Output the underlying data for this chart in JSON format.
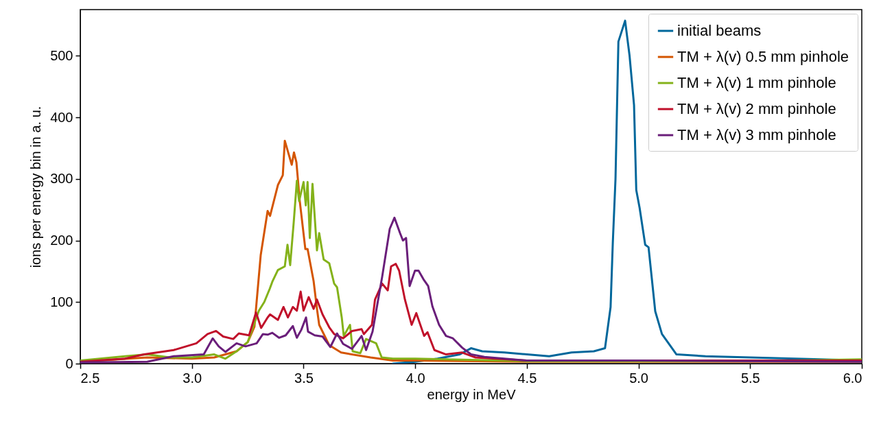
{
  "chart_data": {
    "type": "line",
    "xlabel": "energy in MeV",
    "ylabel": "ions per energy bin in a. u.",
    "xlim": [
      2.5,
      6.0
    ],
    "ylim": [
      0,
      575
    ],
    "xticks": [
      2.5,
      {
        "value": 3,
        "label": "3.0"
      },
      3.5,
      {
        "value": 4,
        "label": "4.0"
      },
      4.5,
      {
        "value": 5,
        "label": "5.0"
      },
      5.5,
      {
        "value": 6,
        "label": "6.0"
      }
    ],
    "yticks": [
      0,
      100,
      200,
      300,
      400,
      500
    ],
    "legend": "top right",
    "line_style": "solid",
    "marker": "none",
    "series": [
      {
        "name": "initial beams",
        "color": "#00679b",
        "x": [
          3.9,
          4.0,
          4.1,
          4.2,
          4.25,
          4.3,
          4.4,
          4.5,
          4.6,
          4.7,
          4.8,
          4.85,
          4.875,
          4.885,
          4.897,
          4.91,
          4.94,
          4.96,
          4.98,
          4.99,
          5.005,
          5.03,
          5.045,
          5.075,
          5.105,
          5.17,
          5.3,
          5.5,
          5.7,
          5.9,
          6.0
        ],
        "values": [
          0,
          3,
          8,
          15,
          25,
          20,
          18,
          15,
          12,
          18,
          20,
          25,
          92,
          197,
          300,
          523,
          557,
          500,
          420,
          282,
          253,
          193,
          189,
          85,
          48,
          15,
          12,
          10,
          8,
          6,
          5
        ]
      },
      {
        "name": "TM + λ(v) 0.5 mm pinhole",
        "color": "#d45500",
        "x": [
          2.5,
          2.8,
          3.0,
          3.1,
          3.2,
          3.25,
          3.28,
          3.308,
          3.339,
          3.35,
          3.385,
          3.407,
          3.416,
          3.447,
          3.457,
          3.468,
          3.483,
          3.508,
          3.518,
          3.545,
          3.56,
          3.57,
          3.615,
          3.668,
          3.8,
          3.9,
          4.0,
          4.5,
          5.0,
          5.5,
          6.0
        ],
        "values": [
          3,
          10,
          8,
          10,
          20,
          35,
          60,
          176,
          248,
          240,
          290,
          306,
          362,
          323,
          343,
          327,
          264,
          186,
          186,
          134,
          89,
          63,
          30,
          18,
          10,
          5,
          5,
          3,
          3,
          3,
          3
        ]
      },
      {
        "name": "TM + λ(v) 1 mm pinhole",
        "color": "#84b21a",
        "x": [
          2.5,
          2.7,
          2.8,
          2.9,
          3.0,
          3.1,
          3.15,
          3.2,
          3.25,
          3.3,
          3.324,
          3.349,
          3.36,
          3.385,
          3.416,
          3.428,
          3.44,
          3.456,
          3.47,
          3.48,
          3.5,
          3.51,
          3.518,
          3.528,
          3.54,
          3.56,
          3.57,
          3.59,
          3.615,
          3.637,
          3.65,
          3.671,
          3.68,
          3.708,
          3.72,
          3.754,
          3.78,
          3.825,
          3.85,
          3.9,
          4.0,
          4.5,
          5.0,
          5.5,
          6.0
        ],
        "values": [
          5,
          12,
          15,
          10,
          10,
          15,
          8,
          20,
          35,
          86,
          100,
          122,
          133,
          152,
          158,
          193,
          160,
          230,
          297,
          264,
          295,
          257,
          295,
          204,
          292,
          184,
          212,
          169,
          163,
          130,
          124,
          75,
          45,
          63,
          20,
          17,
          40,
          33,
          10,
          8,
          8,
          4,
          4,
          4,
          7
        ]
      },
      {
        "name": "TM + λ(v) 2 mm pinhole",
        "color": "#c0102a",
        "x": [
          2.5,
          2.7,
          2.786,
          2.918,
          3.02,
          3.07,
          3.108,
          3.14,
          3.185,
          3.21,
          3.256,
          3.287,
          3.31,
          3.339,
          3.35,
          3.385,
          3.41,
          3.43,
          3.452,
          3.47,
          3.487,
          3.5,
          3.523,
          3.545,
          3.56,
          3.585,
          3.615,
          3.637,
          3.677,
          3.717,
          3.76,
          3.77,
          3.806,
          3.82,
          3.852,
          3.877,
          3.892,
          3.913,
          3.928,
          3.954,
          3.984,
          4.005,
          4.04,
          4.055,
          4.086,
          4.138,
          4.21,
          4.27,
          4.5,
          5.0,
          5.5,
          6.0
        ],
        "values": [
          3,
          8,
          15,
          22,
          33,
          48,
          53,
          44,
          40,
          49,
          46,
          83,
          58,
          75,
          80,
          71,
          92,
          75,
          92,
          86,
          117,
          86,
          108,
          89,
          104,
          80,
          59,
          48,
          41,
          53,
          56,
          48,
          63,
          104,
          130,
          119,
          158,
          162,
          151,
          104,
          63,
          82,
          45,
          51,
          22,
          15,
          18,
          10,
          5,
          5,
          5,
          5
        ]
      },
      {
        "name": "TM + λ(v) 3 mm pinhole",
        "color": "#6a1e7a",
        "x": [
          2.5,
          2.8,
          2.918,
          3.053,
          3.093,
          3.12,
          3.15,
          3.2,
          3.24,
          3.29,
          3.318,
          3.339,
          3.36,
          3.39,
          3.42,
          3.452,
          3.47,
          3.49,
          3.511,
          3.52,
          3.55,
          3.585,
          3.62,
          3.65,
          3.677,
          3.717,
          3.76,
          3.78,
          3.809,
          3.852,
          3.886,
          3.907,
          3.932,
          3.945,
          3.959,
          3.975,
          3.999,
          4.015,
          4.037,
          4.058,
          4.077,
          4.107,
          4.138,
          4.169,
          4.21,
          4.25,
          4.31,
          4.5,
          5.0,
          6.0
        ],
        "values": [
          2,
          3,
          12,
          15,
          41,
          28,
          19,
          33,
          28,
          33,
          48,
          47,
          50,
          42,
          46,
          61,
          42,
          55,
          75,
          52,
          46,
          44,
          27,
          49,
          32,
          24,
          45,
          22,
          52,
          141,
          219,
          237,
          212,
          200,
          204,
          126,
          151,
          151,
          137,
          126,
          93,
          63,
          45,
          41,
          26,
          15,
          11,
          5,
          5,
          3
        ]
      }
    ]
  }
}
